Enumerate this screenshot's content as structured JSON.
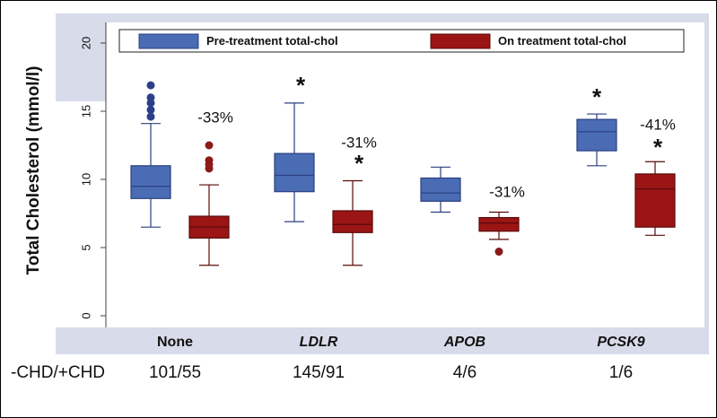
{
  "chart_data": {
    "type": "box",
    "y_label": "Total Cholesterol (mmol/l)",
    "categories": [
      "None",
      "LDLR",
      "APOB",
      "PCSK9"
    ],
    "ylim": [
      0,
      20
    ],
    "yticks": [
      0,
      5,
      10,
      15,
      20
    ],
    "series": [
      {
        "name": "Pre-treatment total-chol",
        "color": "#4a6cb5",
        "boxes": [
          {
            "low": 6.5,
            "q1": 8.6,
            "median": 9.5,
            "q3": 11.0,
            "high": 14.1,
            "outliers": [
              14.6,
              15.1,
              15.6,
              16.0,
              16.9
            ]
          },
          {
            "low": 6.9,
            "q1": 9.1,
            "median": 10.3,
            "q3": 11.9,
            "high": 15.6,
            "outliers": []
          },
          {
            "low": 7.6,
            "q1": 8.4,
            "median": 9.0,
            "q3": 10.1,
            "high": 10.9,
            "outliers": []
          },
          {
            "low": 11.0,
            "q1": 12.1,
            "median": 13.5,
            "q3": 14.4,
            "high": 14.8,
            "outliers": []
          }
        ]
      },
      {
        "name": "On treatment total-chol",
        "color": "#9b1515",
        "boxes": [
          {
            "low": 3.7,
            "q1": 5.7,
            "median": 6.5,
            "q3": 7.3,
            "high": 9.6,
            "outliers": [
              10.8,
              11.1,
              11.4,
              12.5
            ]
          },
          {
            "low": 3.7,
            "q1": 6.1,
            "median": 6.7,
            "q3": 7.7,
            "high": 9.9,
            "outliers": []
          },
          {
            "low": 5.6,
            "q1": 6.2,
            "median": 6.8,
            "q3": 7.2,
            "high": 7.6,
            "outliers": [
              4.7
            ]
          },
          {
            "low": 5.9,
            "q1": 6.5,
            "median": 9.3,
            "q3": 10.4,
            "high": 11.3,
            "outliers": []
          }
        ]
      }
    ],
    "annotations": [
      "-33%",
      "*",
      "-31%",
      "*",
      "-31%",
      "*",
      "-41%",
      "*"
    ],
    "footer": {
      "label": "-CHD/+CHD",
      "values": [
        "101/55",
        "145/91",
        "4/6",
        "1/6"
      ]
    }
  }
}
